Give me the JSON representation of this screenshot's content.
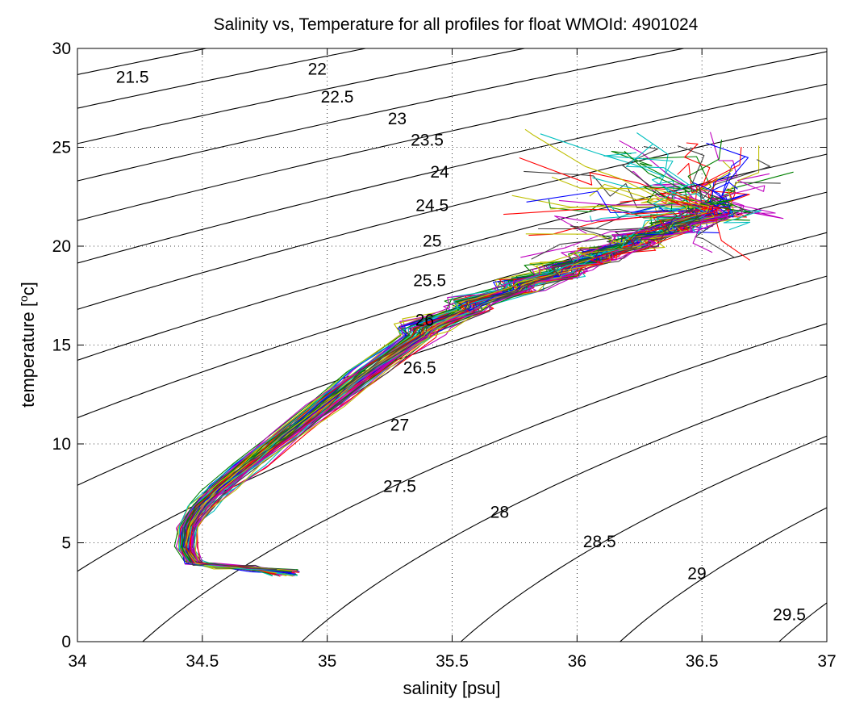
{
  "chart_data": {
    "type": "line",
    "title": "Salinity vs, Temperature for all profiles for float WMOId: 4901024",
    "xlabel": "salinity [psu]",
    "ylabel_main": "temperature [",
    "ylabel_sup": "o",
    "ylabel_end": "c]",
    "xlim": [
      34,
      37
    ],
    "ylim": [
      0,
      30
    ],
    "xticks": [
      34,
      34.5,
      35,
      35.5,
      36,
      36.5,
      37
    ],
    "xtick_labels": [
      "34",
      "34.5",
      "35",
      "35.5",
      "36",
      "36.5",
      "37"
    ],
    "yticks": [
      0,
      5,
      10,
      15,
      20,
      25,
      30
    ],
    "ytick_labels": [
      "0",
      "5",
      "10",
      "15",
      "20",
      "25",
      "30"
    ],
    "grid": "dotted",
    "legend": "none",
    "density_contours": [
      {
        "label": "21.5",
        "label_pos": [
          34.22,
          28.6
        ]
      },
      {
        "label": "22",
        "label_pos": [
          34.96,
          29.0
        ]
      },
      {
        "label": "22.5",
        "label_pos": [
          35.04,
          27.6
        ]
      },
      {
        "label": "23",
        "label_pos": [
          35.28,
          26.5
        ]
      },
      {
        "label": "23.5",
        "label_pos": [
          35.4,
          25.4
        ]
      },
      {
        "label": "24",
        "label_pos": [
          35.45,
          23.8
        ]
      },
      {
        "label": "24.5",
        "label_pos": [
          35.42,
          22.1
        ]
      },
      {
        "label": "25",
        "label_pos": [
          35.42,
          20.3
        ]
      },
      {
        "label": "25.5",
        "label_pos": [
          35.41,
          18.3
        ]
      },
      {
        "label": "26",
        "label_pos": [
          35.39,
          16.3
        ]
      },
      {
        "label": "26.5",
        "label_pos": [
          35.37,
          13.9
        ]
      },
      {
        "label": "27",
        "label_pos": [
          35.29,
          11.0
        ]
      },
      {
        "label": "27.5",
        "label_pos": [
          35.29,
          7.9
        ]
      },
      {
        "label": "28",
        "label_pos": [
          35.69,
          6.6
        ]
      },
      {
        "label": "28.5",
        "label_pos": [
          36.09,
          5.1
        ]
      },
      {
        "label": "29",
        "label_pos": [
          36.48,
          3.5
        ]
      },
      {
        "label": "29.5",
        "label_pos": [
          36.85,
          1.4
        ]
      }
    ],
    "profile_colors": [
      "#0000ff",
      "#008000",
      "#ff0000",
      "#00bfbf",
      "#bf00bf",
      "#bfbf00",
      "#404040"
    ],
    "profile_count": 70,
    "mean_profile": {
      "salinity": [
        34.85,
        34.7,
        34.55,
        34.47,
        34.44,
        34.45,
        34.5,
        34.58,
        34.7,
        34.85,
        35.0,
        35.18,
        35.38,
        35.58,
        35.78,
        35.95,
        36.1,
        36.25,
        36.4,
        36.55
      ],
      "temperature": [
        3.5,
        3.7,
        3.85,
        4.0,
        4.7,
        5.8,
        6.8,
        7.8,
        9.0,
        10.5,
        12.0,
        13.7,
        15.5,
        16.8,
        17.8,
        18.6,
        19.3,
        20.0,
        20.8,
        21.5
      ]
    }
  }
}
